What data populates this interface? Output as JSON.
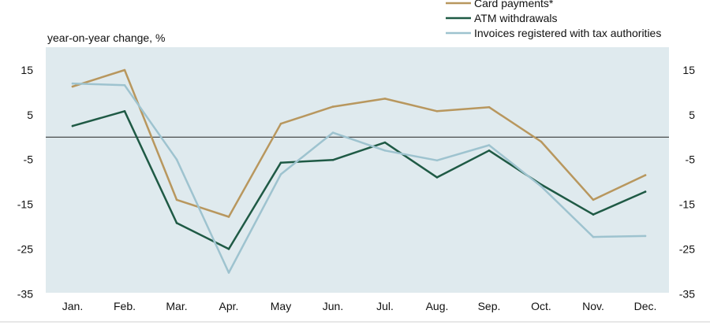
{
  "chart_data": {
    "type": "line",
    "ylabel": "year-on-year change, %",
    "ylim": [
      -35,
      20
    ],
    "yticks": [
      15,
      5,
      -5,
      -15,
      -25,
      -35
    ],
    "categories": [
      "Jan.",
      "Feb.",
      "Mar.",
      "Apr.",
      "May",
      "Jun.",
      "Jul.",
      "Aug.",
      "Sep.",
      "Oct.",
      "Nov.",
      "Dec."
    ],
    "grid": false,
    "zero_line": true,
    "legend_position": "top-right",
    "series": [
      {
        "name": "Card payments*",
        "color": "#b8975e",
        "values": [
          11.3,
          15,
          -14,
          -17.8,
          3,
          6.8,
          8.6,
          5.8,
          6.7,
          -1,
          -14,
          -8.5
        ]
      },
      {
        "name": "ATM withdrawals",
        "color": "#1f5a45",
        "values": [
          2.5,
          5.8,
          -19.2,
          -25,
          -5.7,
          -5.1,
          -1.2,
          -9,
          -3,
          -10.6,
          -17.3,
          -12.2
        ]
      },
      {
        "name": "Invoices registered with tax authorities",
        "color": "#9ec3cf",
        "values": [
          12,
          11.6,
          -5,
          -30.3,
          -8.3,
          1,
          -3,
          -5.2,
          -1.8,
          -11,
          -22.3,
          -22.1
        ]
      }
    ]
  }
}
